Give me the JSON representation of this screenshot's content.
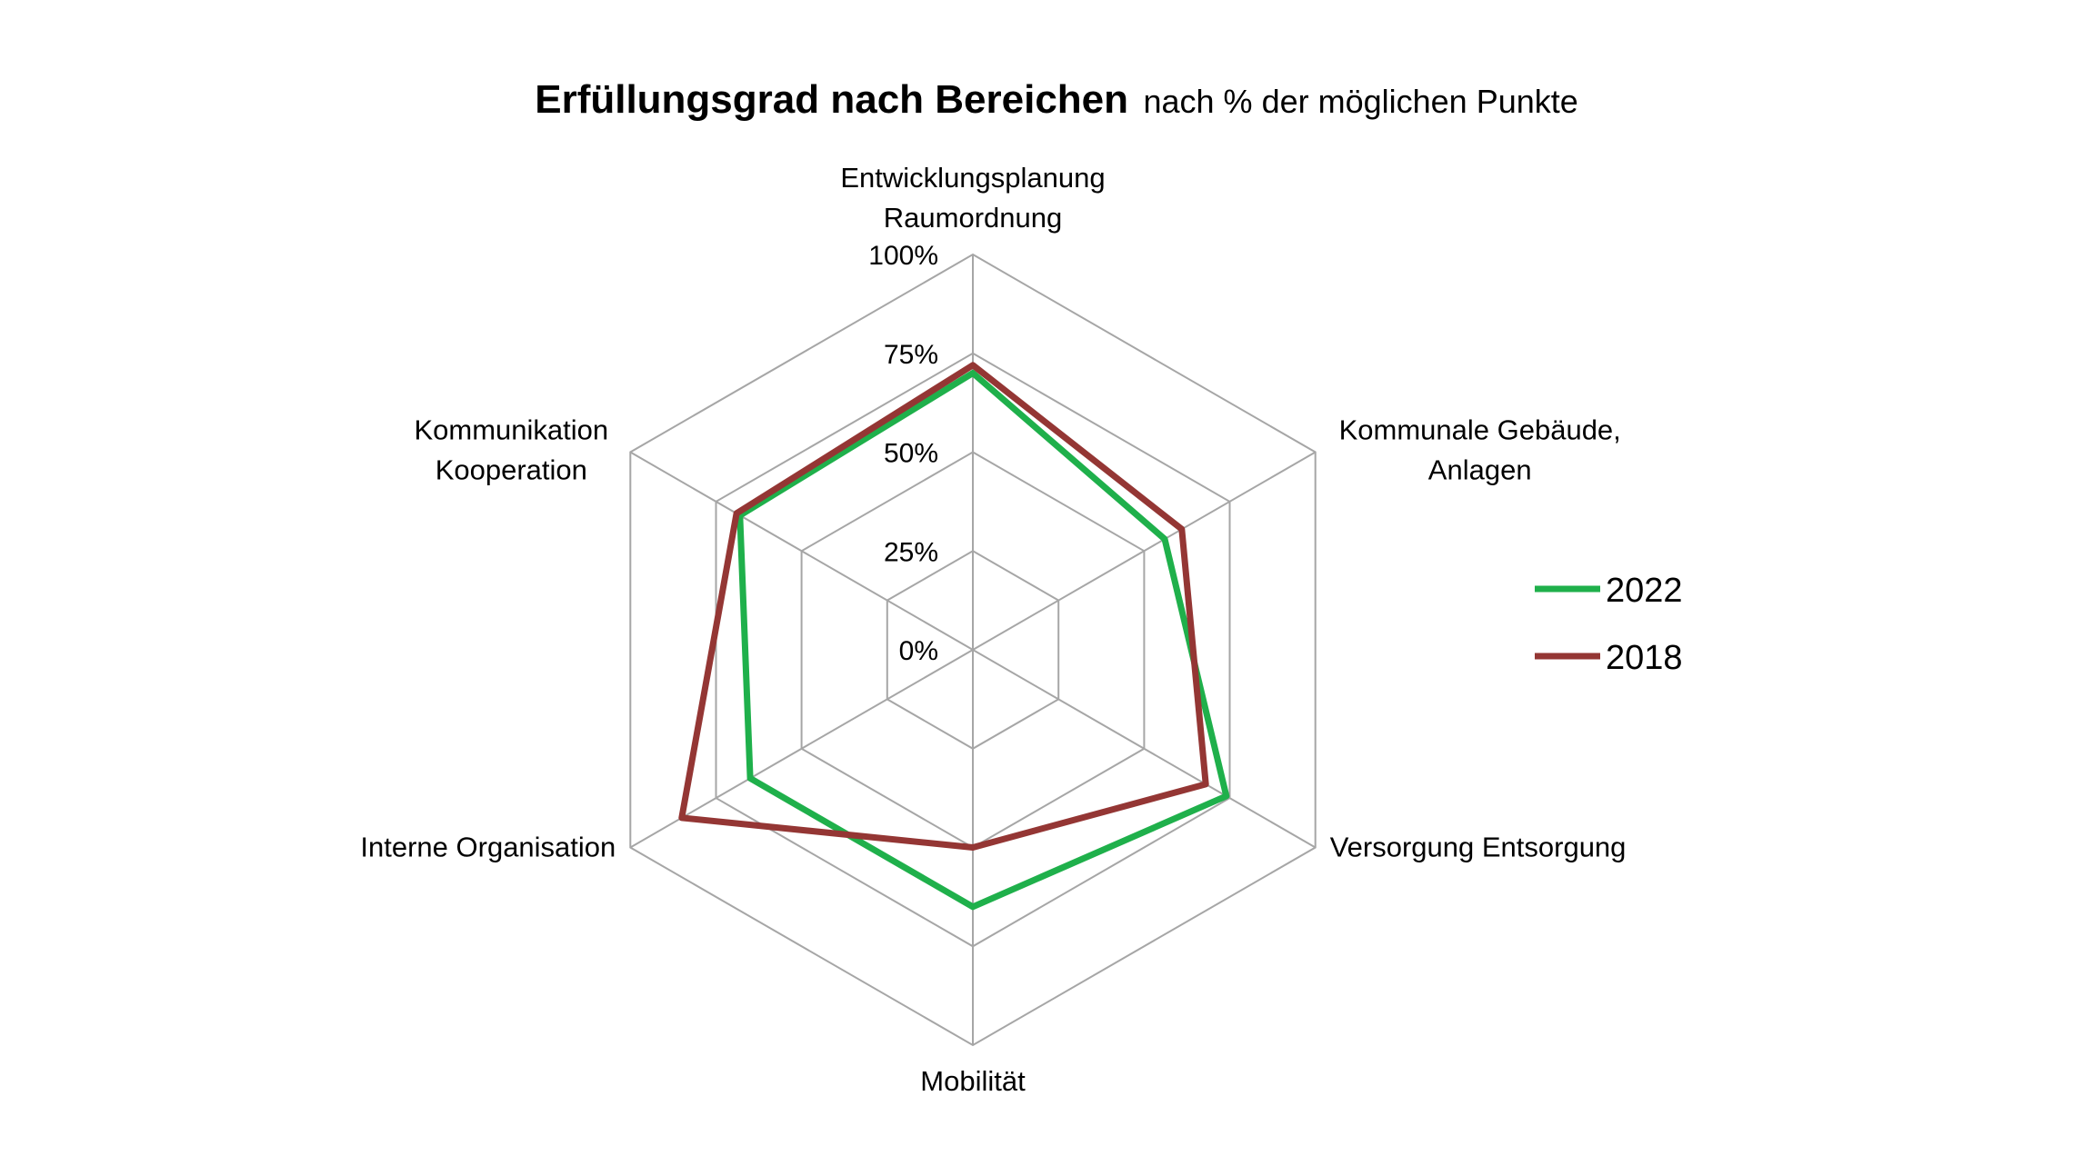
{
  "chart_data": {
    "type": "radar",
    "title": "Erfüllungsgrad nach Bereichen",
    "subtitle": "nach % der möglichen Punkte",
    "categories": [
      [
        "Entwicklungsplanung",
        "Raumordnung"
      ],
      [
        "Kommunale Gebäude,",
        "Anlagen"
      ],
      [
        "Versorgung Entsorgung"
      ],
      [
        "Mobilität"
      ],
      [
        "Interne Organisation"
      ],
      [
        "Kommunikation",
        "Kooperation"
      ]
    ],
    "radial_ticks": [
      "0%",
      "25%",
      "50%",
      "75%",
      "100%"
    ],
    "rlim": [
      0,
      100
    ],
    "legend_position": "right",
    "series": [
      {
        "name": "2022",
        "color": "#1fb04b",
        "values": [
          70,
          56,
          74,
          65,
          65,
          68
        ]
      },
      {
        "name": "2018",
        "color": "#943634",
        "values": [
          72,
          61,
          68,
          50,
          85,
          69
        ]
      }
    ],
    "grid_color": "#a6a6a6"
  }
}
